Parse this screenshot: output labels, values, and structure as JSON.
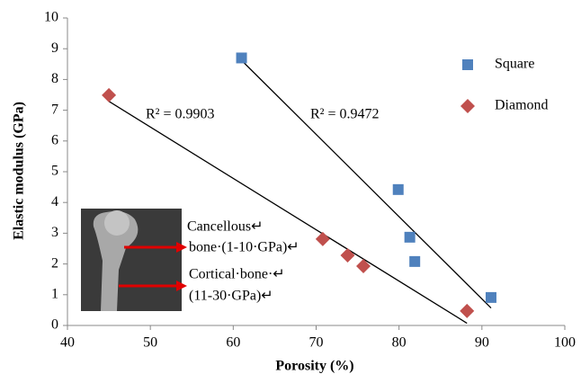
{
  "chart_data": {
    "type": "scatter",
    "x_label": "Porosity (%)",
    "y_label": "Elastic modulus (GPa)",
    "xlim": [
      40,
      100
    ],
    "xticks": [
      40,
      50,
      60,
      70,
      80,
      90,
      100
    ],
    "ylim": [
      0,
      10
    ],
    "yticks": [
      0,
      1,
      2,
      3,
      4,
      5,
      6,
      7,
      8,
      9,
      10
    ],
    "grid": false,
    "legend": "top-right",
    "trendline": "linear",
    "series": [
      {
        "name": "Square",
        "marker": "square",
        "color": "#4f81bd",
        "x": [
          61.0,
          79.9,
          81.3,
          81.9,
          91.1
        ],
        "values": [
          8.7,
          4.42,
          2.87,
          2.08,
          0.91
        ],
        "r2_label": "R² = 0.9472"
      },
      {
        "name": "Diamond",
        "marker": "diamond",
        "color": "#c0504d",
        "x": [
          45.0,
          70.8,
          73.8,
          75.7,
          88.2
        ],
        "values": [
          7.49,
          2.81,
          2.28,
          1.93,
          0.47
        ],
        "r2_label": "R² = 0.9903"
      }
    ],
    "annotations": [
      "Cancellous↵",
      "bone·(1-10·GPa)↵",
      "Cortical·bone·↵",
      "(11-30·GPa)↵"
    ]
  }
}
